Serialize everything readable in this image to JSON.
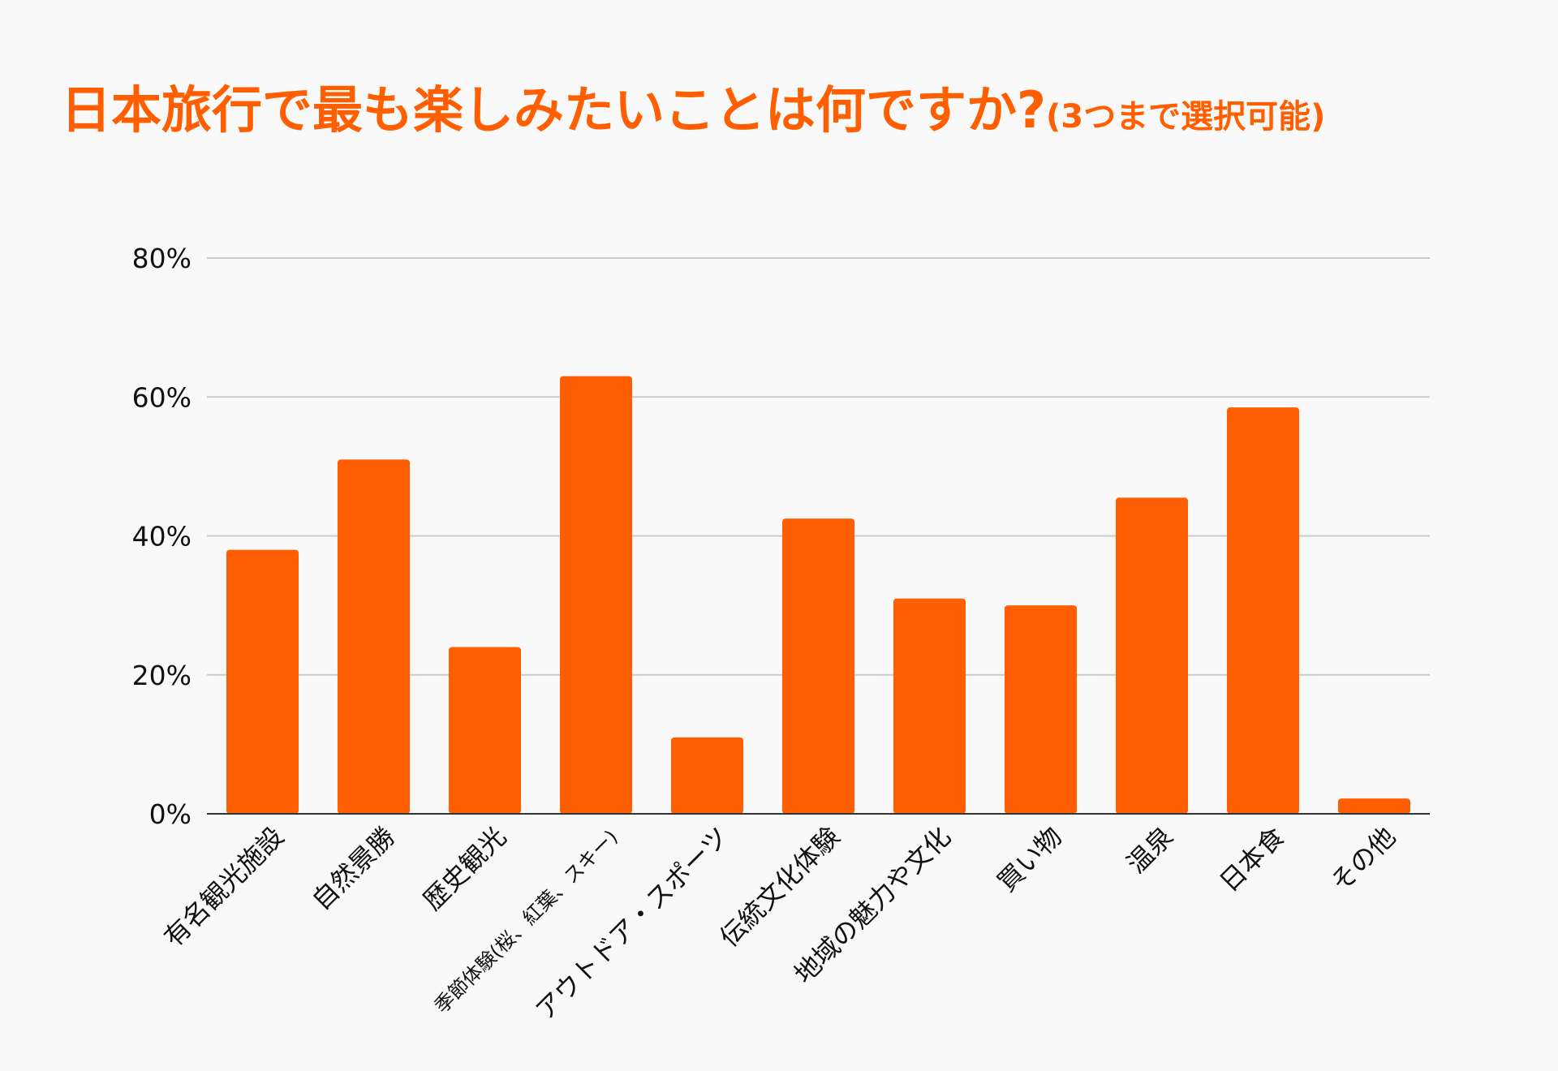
{
  "chart_data": {
    "type": "bar",
    "title": "日本旅行で最も楽しみたいことは何ですか?",
    "subtitle": "(3つまで選択可能)",
    "categories": [
      "有名観光施設",
      "自然景勝",
      "歴史観光",
      "季節体験(桜、紅葉、スキー)",
      "アウトドア・スポーツ",
      "伝統文化体験",
      "地域の魅力や文化",
      "買い物",
      "温泉",
      "日本食",
      "その他"
    ],
    "values": [
      38,
      51,
      24,
      63,
      11,
      42.5,
      31,
      30,
      45.5,
      58.5,
      2.2
    ],
    "unit": "%",
    "ylim": [
      0,
      80
    ],
    "yticks": [
      0,
      20,
      40,
      60,
      80
    ],
    "ytick_labels": [
      "0%",
      "20%",
      "40%",
      "60%",
      "80%"
    ],
    "grid": true,
    "legend": "none",
    "colors": {
      "bar": "#ff5f00",
      "title": "#ff5f00",
      "grid": "#cccccc",
      "axis": "#333333",
      "text": "#111111"
    }
  }
}
